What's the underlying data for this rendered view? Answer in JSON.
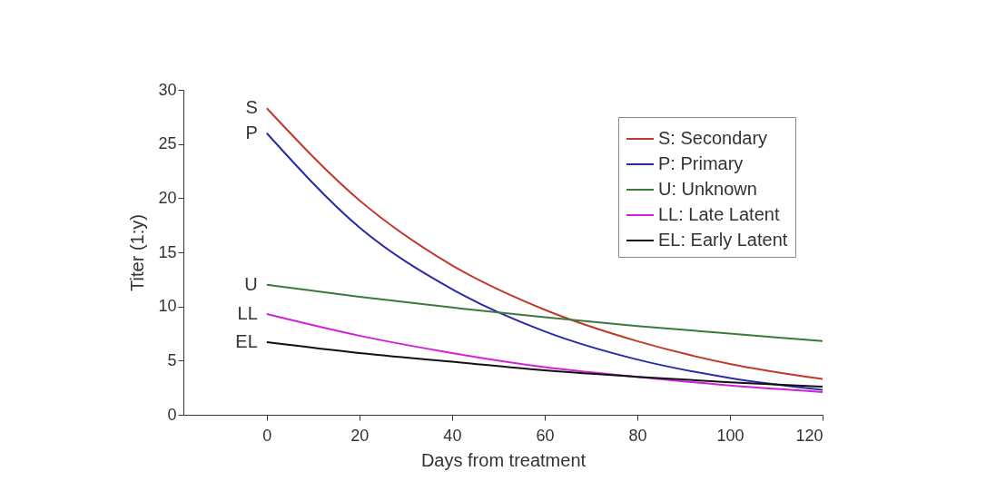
{
  "chart_data": {
    "type": "line",
    "xlabel": "Days from treatment",
    "ylabel": "Titer (1:y)",
    "x": [
      0,
      20,
      40,
      60,
      80,
      100,
      120
    ],
    "series": [
      {
        "name": "S: Secondary",
        "color": "#c0392b",
        "values": [
          28.3,
          19.8,
          13.8,
          9.7,
          6.8,
          4.7,
          3.3
        ]
      },
      {
        "name": "P: Primary",
        "color": "#2a2aa8",
        "values": [
          26,
          17.3,
          11.6,
          7.7,
          5.1,
          3.4,
          2.3
        ]
      },
      {
        "name": "U: Unknown",
        "color": "#3a7a3a",
        "values": [
          12,
          10.9,
          9.9,
          9.0,
          8.2,
          7.5,
          6.8
        ]
      },
      {
        "name": "LL: Late Latent",
        "color": "#d020d8",
        "values": [
          9.3,
          7.3,
          5.7,
          4.4,
          3.5,
          2.7,
          2.1
        ]
      },
      {
        "name": "EL: Early Latent",
        "color": "#111111",
        "values": [
          6.7,
          5.7,
          4.9,
          4.1,
          3.5,
          3.0,
          2.6
        ]
      }
    ],
    "xlim": [
      -18,
      120
    ],
    "xticks": [
      0,
      20,
      40,
      60,
      80,
      100,
      120
    ],
    "ylim": [
      0,
      30
    ],
    "yticks": [
      0,
      5,
      10,
      15,
      20,
      25,
      30
    ],
    "annotations": [
      "S",
      "P",
      "U",
      "LL",
      "EL"
    ],
    "legend": "top right",
    "grid": false,
    "marker": "none",
    "line_style": "solid"
  }
}
